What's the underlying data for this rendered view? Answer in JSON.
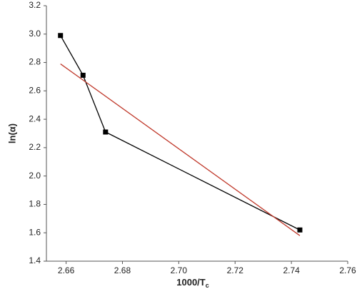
{
  "chart_data": {
    "type": "line",
    "x_label": "1000/T",
    "x_label_subscript": "c",
    "y_label": "ln(α)",
    "xlim": [
      2.653,
      2.76
    ],
    "xticks": [
      2.66,
      2.68,
      {
        "value": 2.7,
        "label": "2.70"
      },
      2.72,
      2.74,
      2.76
    ],
    "ylim": [
      1.4,
      3.2
    ],
    "yticks": [
      1.4,
      1.6,
      1.8,
      {
        "value": 2,
        "label": "2.0"
      },
      2.2,
      2.4,
      2.6,
      2.8,
      {
        "value": 3,
        "label": "3.0"
      },
      3.2
    ],
    "series": [
      {
        "color": "#000000",
        "markers": true,
        "x": [
          2.658,
          2.666,
          2.674,
          2.743
        ],
        "values": [
          2.99,
          2.71,
          2.31,
          1.62
        ]
      },
      {
        "color": "#c0392b",
        "markers": false,
        "x": [
          2.658,
          2.743
        ],
        "values": [
          2.79,
          1.58
        ]
      }
    ]
  }
}
